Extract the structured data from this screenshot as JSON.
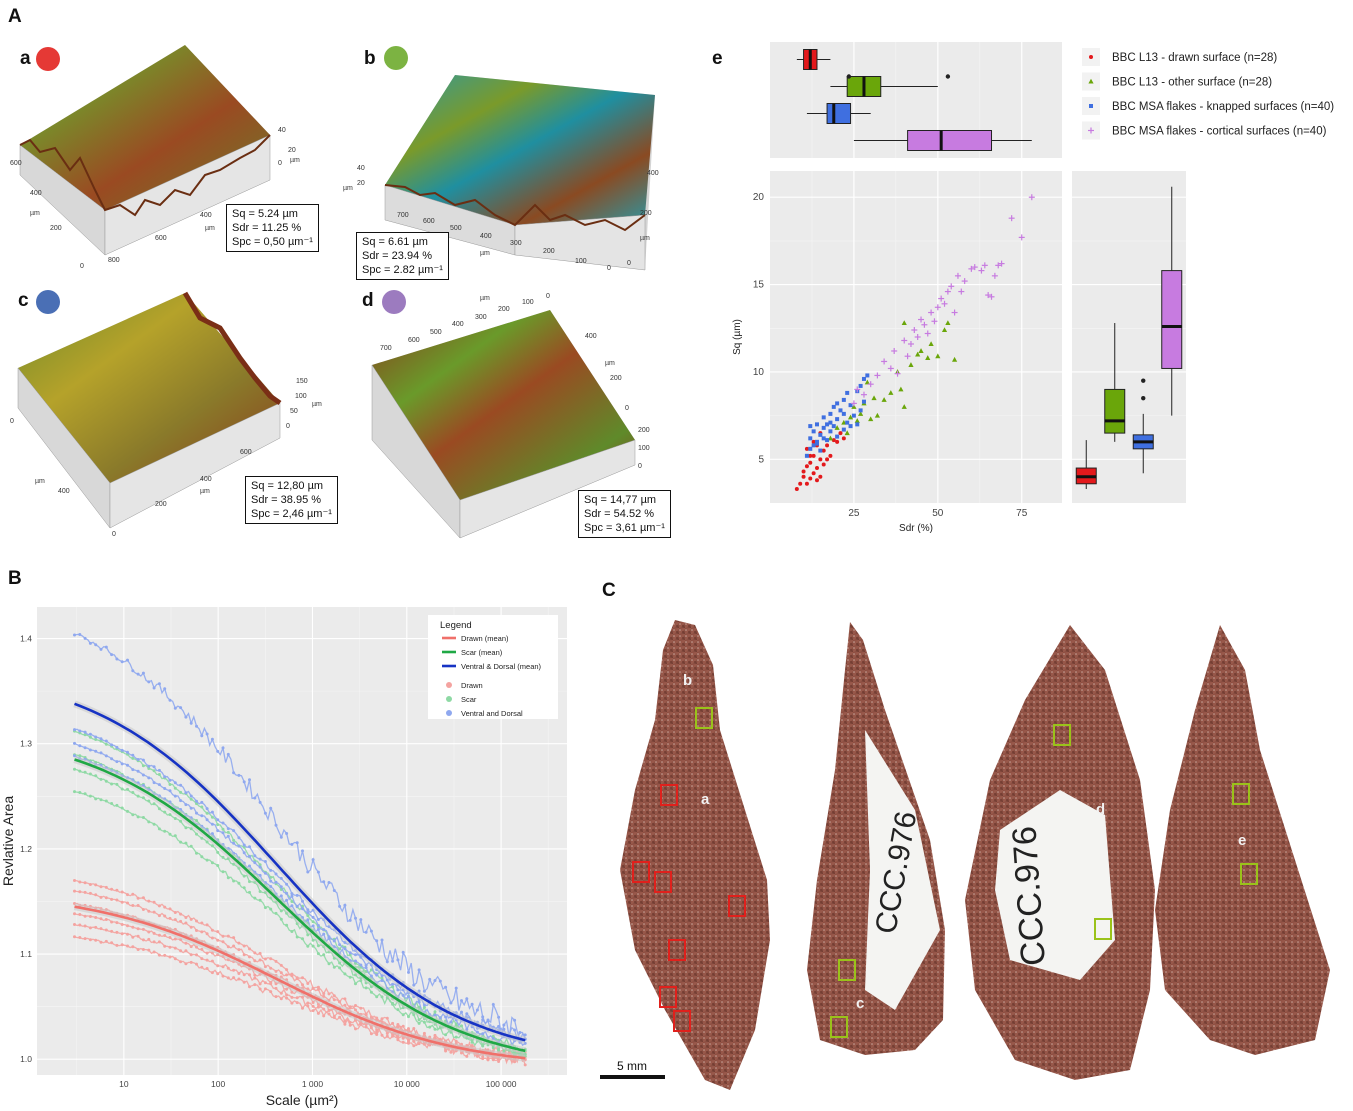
{
  "panels": {
    "A": "A",
    "B": "B",
    "C": "C"
  },
  "surfaces": [
    {
      "letter": "a",
      "color": "#e53935",
      "sq": "Sq = 5.24 µm",
      "sdr": "Sdr = 11.25 %",
      "spc": "Spc = 0,50 µm⁻¹",
      "ticks": [
        "600",
        "400",
        "200",
        "0",
        "µm",
        "800",
        "600",
        "400",
        "µm",
        "40",
        "20",
        "0",
        "µm"
      ]
    },
    {
      "letter": "b",
      "color": "#7cb342",
      "sq": "Sq = 6.61 µm",
      "sdr": "Sdr = 23.94 %",
      "spc": "Spc = 2.82 µm⁻¹",
      "ticks": [
        "40",
        "20",
        "µm",
        "700",
        "600",
        "500",
        "400",
        "300",
        "200",
        "100",
        "0",
        "µm",
        "400",
        "200",
        "0",
        "µm"
      ]
    },
    {
      "letter": "c",
      "color": "#4a6fb5",
      "sq": "Sq = 12,80 µm",
      "sdr": "Sdr = 38.95 %",
      "spc": "Spc = 2,46 µm⁻¹",
      "ticks": [
        "0",
        "µm",
        "400",
        "0",
        "200",
        "400",
        "600",
        "µm",
        "150",
        "100",
        "50",
        "0",
        "µm"
      ]
    },
    {
      "letter": "d",
      "color": "#9c7bbf",
      "sq": "Sq = 14,77 µm",
      "sdr": "Sdr = 54.52 %",
      "spc": "Spc = 3,61 µm⁻¹",
      "ticks": [
        "700",
        "600",
        "500",
        "400",
        "300",
        "200",
        "100",
        "0",
        "µm",
        "400",
        "200",
        "0",
        "µm",
        "200",
        "100",
        "0"
      ]
    }
  ],
  "panel_e": {
    "letter": "e",
    "legend": [
      {
        "label": "BBC L13 - drawn surface (n=28)",
        "color": "#e3191c",
        "marker": "●"
      },
      {
        "label": "BBC L13 - other surface (n=28)",
        "color": "#6aa60a",
        "marker": "▲"
      },
      {
        "label": "BBC MSA flakes - knapped surfaces (n=40)",
        "color": "#3f6fe0",
        "marker": "■"
      },
      {
        "label": "BBC MSA flakes - cortical surfaces (n=40)",
        "color": "#c77be0",
        "marker": "+"
      }
    ]
  },
  "panel_C": {
    "labels": [
      "b",
      "a",
      "c",
      "d",
      "e"
    ],
    "numbers": [
      "CCC.976",
      "CCC.976"
    ],
    "scale": "5 mm"
  },
  "chart_data": [
    {
      "type": "scatter",
      "id": "sq-vs-sdr",
      "xlabel": "Sdr (%)",
      "ylabel": "Sq (µm)",
      "xlim": [
        0,
        87
      ],
      "ylim": [
        2.5,
        21.5
      ],
      "xticks": [
        25,
        50,
        75
      ],
      "yticks": [
        5,
        10,
        15,
        20
      ],
      "grid": true,
      "series": [
        {
          "name": "BBC L13 - drawn surface (n=28)",
          "color": "#e3191c",
          "marker": "circle",
          "points": [
            [
              8,
              3.3
            ],
            [
              9,
              3.6
            ],
            [
              10,
              4.0
            ],
            [
              10,
              4.3
            ],
            [
              11,
              3.6
            ],
            [
              11,
              4.6
            ],
            [
              12,
              3.9
            ],
            [
              12,
              4.8
            ],
            [
              13,
              4.2
            ],
            [
              13,
              5.2
            ],
            [
              14,
              3.8
            ],
            [
              14,
              4.5
            ],
            [
              15,
              4.0
            ],
            [
              15,
              5.0
            ],
            [
              16,
              4.7
            ],
            [
              16,
              5.5
            ],
            [
              17,
              5.0
            ],
            [
              17,
              5.8
            ],
            [
              18,
              5.2
            ],
            [
              19,
              6.1
            ],
            [
              20,
              6.0
            ],
            [
              21,
              6.5
            ],
            [
              22,
              6.2
            ],
            [
              11,
              5.6
            ],
            [
              13,
              6.0
            ],
            [
              15,
              6.5
            ],
            [
              14,
              5.8
            ],
            [
              12,
              5.2
            ]
          ]
        },
        {
          "name": "BBC L13 - other surface (n=28)",
          "color": "#6aa60a",
          "marker": "triangle",
          "points": [
            [
              18,
              6.2
            ],
            [
              20,
              6.8
            ],
            [
              22,
              7.1
            ],
            [
              23,
              6.5
            ],
            [
              24,
              7.4
            ],
            [
              25,
              8.0
            ],
            [
              26,
              7.2
            ],
            [
              27,
              7.6
            ],
            [
              28,
              8.2
            ],
            [
              29,
              9.4
            ],
            [
              30,
              7.3
            ],
            [
              31,
              8.5
            ],
            [
              32,
              7.5
            ],
            [
              34,
              8.4
            ],
            [
              36,
              8.8
            ],
            [
              38,
              10.0
            ],
            [
              39,
              9.0
            ],
            [
              40,
              8.0
            ],
            [
              42,
              10.4
            ],
            [
              44,
              11.0
            ],
            [
              45,
              11.2
            ],
            [
              47,
              10.8
            ],
            [
              48,
              11.6
            ],
            [
              50,
              10.9
            ],
            [
              52,
              12.4
            ],
            [
              53,
              12.8
            ],
            [
              55,
              10.7
            ],
            [
              40,
              12.8
            ]
          ]
        },
        {
          "name": "BBC MSA flakes - knapped surfaces (n=40)",
          "color": "#3f6fe0",
          "marker": "square",
          "points": [
            [
              11,
              5.2
            ],
            [
              12,
              5.6
            ],
            [
              12,
              6.2
            ],
            [
              13,
              5.8
            ],
            [
              13,
              6.6
            ],
            [
              14,
              6.0
            ],
            [
              14,
              7.0
            ],
            [
              15,
              5.5
            ],
            [
              15,
              6.4
            ],
            [
              16,
              6.8
            ],
            [
              16,
              7.4
            ],
            [
              17,
              6.1
            ],
            [
              17,
              7.0
            ],
            [
              18,
              6.6
            ],
            [
              18,
              7.6
            ],
            [
              19,
              6.9
            ],
            [
              19,
              8.0
            ],
            [
              20,
              6.3
            ],
            [
              20,
              7.3
            ],
            [
              21,
              7.8
            ],
            [
              22,
              6.7
            ],
            [
              22,
              8.4
            ],
            [
              23,
              7.1
            ],
            [
              23,
              8.8
            ],
            [
              24,
              6.9
            ],
            [
              24,
              8.1
            ],
            [
              25,
              7.5
            ],
            [
              26,
              8.9
            ],
            [
              26,
              7.0
            ],
            [
              27,
              9.2
            ],
            [
              27,
              7.8
            ],
            [
              28,
              9.6
            ],
            [
              28,
              8.3
            ],
            [
              29,
              9.8
            ],
            [
              14,
              5.9
            ],
            [
              16,
              6.2
            ],
            [
              18,
              7.1
            ],
            [
              20,
              8.2
            ],
            [
              22,
              7.6
            ],
            [
              12,
              6.9
            ]
          ]
        },
        {
          "name": "BBC MSA flakes - cortical surfaces (n=40)",
          "color": "#c77be0",
          "marker": "plus",
          "points": [
            [
              25,
              8.2
            ],
            [
              26,
              9.0
            ],
            [
              28,
              8.7
            ],
            [
              30,
              9.3
            ],
            [
              32,
              9.8
            ],
            [
              34,
              10.6
            ],
            [
              36,
              10.2
            ],
            [
              37,
              11.2
            ],
            [
              38,
              9.9
            ],
            [
              40,
              11.8
            ],
            [
              41,
              10.9
            ],
            [
              42,
              11.6
            ],
            [
              43,
              12.4
            ],
            [
              44,
              12.0
            ],
            [
              45,
              13.0
            ],
            [
              46,
              12.7
            ],
            [
              47,
              12.2
            ],
            [
              48,
              13.4
            ],
            [
              49,
              12.9
            ],
            [
              50,
              13.7
            ],
            [
              51,
              14.2
            ],
            [
              52,
              13.9
            ],
            [
              53,
              14.6
            ],
            [
              54,
              14.9
            ],
            [
              55,
              13.4
            ],
            [
              56,
              15.5
            ],
            [
              57,
              14.6
            ],
            [
              58,
              15.2
            ],
            [
              60,
              15.9
            ],
            [
              61,
              16.0
            ],
            [
              63,
              15.8
            ],
            [
              64,
              16.1
            ],
            [
              65,
              14.4
            ],
            [
              66,
              14.3
            ],
            [
              67,
              15.5
            ],
            [
              68,
              16.1
            ],
            [
              69,
              16.2
            ],
            [
              72,
              18.8
            ],
            [
              75,
              17.7
            ],
            [
              78,
              20.0
            ]
          ]
        }
      ]
    },
    {
      "type": "box",
      "id": "sdr-boxplot",
      "orientation": "horizontal",
      "axis": "Sdr (%)",
      "xlim": [
        0,
        87
      ],
      "boxes": [
        {
          "name": "BBC L13 - drawn surface (n=28)",
          "color": "#e3191c",
          "whisker_low": 8,
          "q1": 10,
          "median": 12,
          "q3": 14,
          "whisker_high": 18,
          "outliers": []
        },
        {
          "name": "BBC L13 - other surface (n=28)",
          "color": "#6aa60a",
          "whisker_low": 18,
          "q1": 23,
          "median": 28,
          "q3": 33,
          "whisker_high": 50,
          "outliers": [
            23.5,
            53
          ]
        },
        {
          "name": "BBC MSA flakes - knapped surfaces (n=40)",
          "color": "#3f6fe0",
          "whisker_low": 11,
          "q1": 17,
          "median": 19,
          "q3": 24,
          "whisker_high": 30,
          "outliers": []
        },
        {
          "name": "BBC MSA flakes - cortical surfaces (n=40)",
          "color": "#c77be0",
          "whisker_low": 25,
          "q1": 41,
          "median": 51,
          "q3": 66,
          "whisker_high": 78,
          "outliers": []
        }
      ]
    },
    {
      "type": "box",
      "id": "sq-boxplot",
      "orientation": "vertical",
      "axis": "Sq (µm)",
      "ylim": [
        2.5,
        21.5
      ],
      "boxes": [
        {
          "name": "BBC L13 - drawn surface (n=28)",
          "color": "#e3191c",
          "whisker_low": 3.3,
          "q1": 3.6,
          "median": 4.0,
          "q3": 4.5,
          "whisker_high": 6.1,
          "outliers": []
        },
        {
          "name": "BBC L13 - other surface (n=28)",
          "color": "#6aa60a",
          "whisker_low": 6.0,
          "q1": 6.5,
          "median": 7.2,
          "q3": 9.0,
          "whisker_high": 12.8,
          "outliers": []
        },
        {
          "name": "BBC MSA flakes - knapped surfaces (n=40)",
          "color": "#3f6fe0",
          "whisker_low": 4.2,
          "q1": 5.6,
          "median": 6.0,
          "q3": 6.4,
          "whisker_high": 7.6,
          "outliers": [
            8.5,
            9.5
          ]
        },
        {
          "name": "BBC MSA flakes - cortical surfaces (n=40)",
          "color": "#c77be0",
          "whisker_low": 7.5,
          "q1": 10.2,
          "median": 12.6,
          "q3": 15.8,
          "whisker_high": 20.6,
          "outliers": []
        }
      ]
    },
    {
      "type": "line",
      "id": "relative-area",
      "xlabel": "Scale (µm²)",
      "ylabel": "Revlative Area",
      "xscale": "log",
      "xlim": [
        1.2,
        500000
      ],
      "ylim": [
        0.985,
        1.43
      ],
      "xticks": [
        {
          "v": 10,
          "label": "10"
        },
        {
          "v": 100,
          "label": "100"
        },
        {
          "v": 1000,
          "label": "1 000"
        },
        {
          "v": 10000,
          "label": "10 000"
        },
        {
          "v": 100000,
          "label": "100 000"
        }
      ],
      "yticks": [
        1.0,
        1.1,
        1.2,
        1.3,
        1.4
      ],
      "grid": true,
      "legend": {
        "title": "Legend",
        "items": [
          {
            "label": "Drawn (mean)",
            "color": "#f0706a",
            "kind": "line"
          },
          {
            "label": "Scar (mean)",
            "color": "#1fa845",
            "kind": "line"
          },
          {
            "label": "Ventral & Dorsal (mean)",
            "color": "#1733c4",
            "kind": "line"
          },
          {
            "label": "Drawn",
            "color": "#f4a3a0",
            "kind": "point"
          },
          {
            "label": "Scar",
            "color": "#8ed9a4",
            "kind": "point"
          },
          {
            "label": "Ventral and Dorsal",
            "color": "#8fa8ef",
            "kind": "point"
          }
        ]
      },
      "means": [
        {
          "name": "Drawn (mean)",
          "color": "#f0706a",
          "start": 1.145,
          "end": 1.001
        },
        {
          "name": "Scar (mean)",
          "color": "#1fa845",
          "start": 1.285,
          "end": 1.008
        },
        {
          "name": "Ventral & Dorsal (mean)",
          "color": "#1733c4",
          "start": 1.338,
          "end": 1.018
        }
      ],
      "traces": [
        {
          "group": "Drawn",
          "color": "#f4a3a0",
          "start": 1.17,
          "end": 1.003
        },
        {
          "group": "Drawn",
          "color": "#f4a3a0",
          "start": 1.16,
          "end": 1.002
        },
        {
          "group": "Drawn",
          "color": "#f4a3a0",
          "start": 1.148,
          "end": 1.001
        },
        {
          "group": "Drawn",
          "color": "#f4a3a0",
          "start": 1.138,
          "end": 1.001
        },
        {
          "group": "Drawn",
          "color": "#f4a3a0",
          "start": 1.128,
          "end": 1.0
        },
        {
          "group": "Drawn",
          "color": "#f4a3a0",
          "start": 1.116,
          "end": 1.0
        },
        {
          "group": "Scar",
          "color": "#8ed9a4",
          "start": 1.312,
          "end": 1.01
        },
        {
          "group": "Scar",
          "color": "#8ed9a4",
          "start": 1.29,
          "end": 1.008
        },
        {
          "group": "Scar",
          "color": "#8ed9a4",
          "start": 1.276,
          "end": 1.006
        },
        {
          "group": "Scar",
          "color": "#8ed9a4",
          "start": 1.255,
          "end": 1.005
        },
        {
          "group": "Ventral and Dorsal",
          "color": "#8fa8ef",
          "start": 1.405,
          "end": 1.028
        },
        {
          "group": "Ventral and Dorsal",
          "color": "#8fa8ef",
          "start": 1.314,
          "end": 1.022
        },
        {
          "group": "Ventral and Dorsal",
          "color": "#8fa8ef",
          "start": 1.3,
          "end": 1.02
        },
        {
          "group": "Ventral and Dorsal",
          "color": "#8fa8ef",
          "start": 1.288,
          "end": 1.015
        }
      ]
    }
  ]
}
